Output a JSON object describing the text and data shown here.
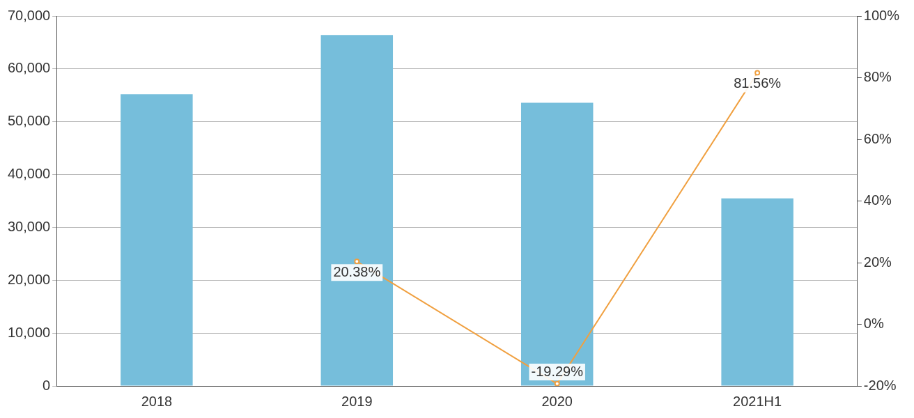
{
  "chart_data": {
    "type": "bar",
    "categories": [
      "2018",
      "2019",
      "2020",
      "2021H1"
    ],
    "series": [
      {
        "color": "#76bedb",
        "values": [
          55200,
          66400,
          53600,
          35500
        ]
      },
      {
        "type": "line",
        "axis": "y2",
        "color": "#f0a040",
        "values": [
          null,
          20.38,
          -19.29,
          81.56
        ],
        "value_labels": [
          null,
          "20.38%",
          "-19.29%",
          "81.56%"
        ]
      }
    ],
    "ylim": [
      0,
      70000
    ],
    "yticks": [
      {
        "value": 0,
        "label": "0"
      },
      {
        "value": 10000,
        "label": "10,000"
      },
      {
        "value": 20000,
        "label": "20,000"
      },
      {
        "value": 30000,
        "label": "30,000"
      },
      {
        "value": 40000,
        "label": "40,000"
      },
      {
        "value": 50000,
        "label": "50,000"
      },
      {
        "value": 60000,
        "label": "60,000"
      },
      {
        "value": 70000,
        "label": "70,000"
      }
    ],
    "y2lim": [
      -20,
      100
    ],
    "y2ticks": [
      {
        "value": -20,
        "label": "-20%"
      },
      {
        "value": 0,
        "label": "0%"
      },
      {
        "value": 20,
        "label": "20%"
      },
      {
        "value": 40,
        "label": "40%"
      },
      {
        "value": 60,
        "label": "60%"
      },
      {
        "value": 80,
        "label": "80%"
      },
      {
        "value": 100,
        "label": "100%"
      }
    ],
    "grid": "y",
    "legend": false,
    "marker": "circle",
    "line_style": "solid"
  }
}
